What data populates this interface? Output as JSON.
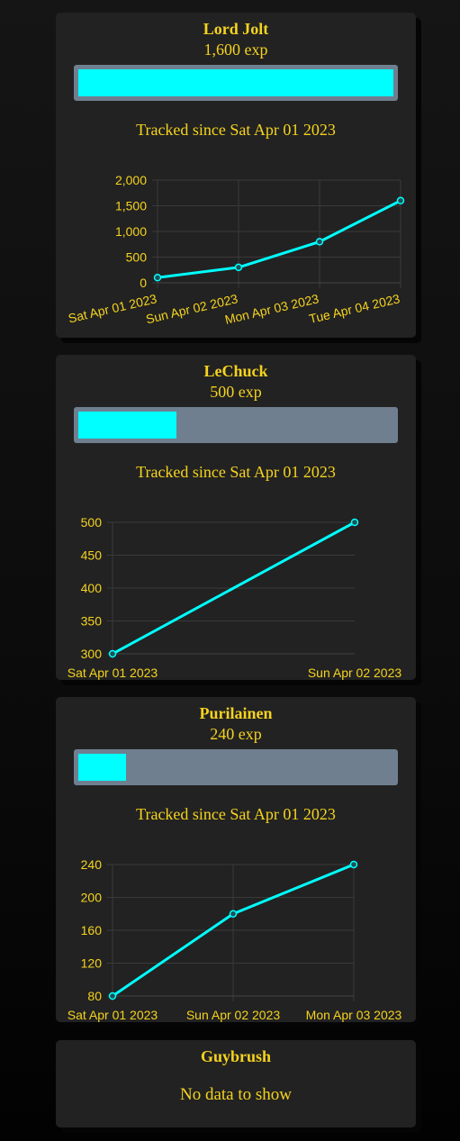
{
  "colors": {
    "accent": "#00ffff",
    "text": "#f5d31e",
    "card": "#222222",
    "bar_track": "#6f7f8f"
  },
  "players": [
    {
      "name": "Lord Jolt",
      "exp_text": "1,600 exp",
      "exp_fill_fraction": 1.0,
      "tracked_text": "Tracked since Sat Apr 01 2023"
    },
    {
      "name": "LeChuck",
      "exp_text": "500 exp",
      "exp_fill_fraction": 0.31,
      "tracked_text": "Tracked since Sat Apr 01 2023"
    },
    {
      "name": "Purilainen",
      "exp_text": "240 exp",
      "exp_fill_fraction": 0.15,
      "tracked_text": "Tracked since Sat Apr 01 2023"
    },
    {
      "name": "Guybrush",
      "no_data_text": "No data to show"
    }
  ],
  "chart_data": [
    {
      "type": "line",
      "x": [
        "Sat Apr 01 2023",
        "Sun Apr 02 2023",
        "Mon Apr 03 2023",
        "Tue Apr 04 2023"
      ],
      "values": [
        100,
        300,
        800,
        1600
      ],
      "yticks": [
        "0",
        "500",
        "1,000",
        "1,500",
        "2,000"
      ],
      "ylim": [
        0,
        2000
      ],
      "grid": true
    },
    {
      "type": "line",
      "x": [
        "Sat Apr 01 2023",
        "Sun Apr 02 2023"
      ],
      "values": [
        300,
        500
      ],
      "yticks": [
        "300",
        "350",
        "400",
        "450",
        "500"
      ],
      "ylim": [
        300,
        500
      ],
      "grid": true
    },
    {
      "type": "line",
      "x": [
        "Sat Apr 01 2023",
        "Sun Apr 02 2023",
        "Mon Apr 03 2023"
      ],
      "values": [
        80,
        180,
        240
      ],
      "yticks": [
        "80",
        "120",
        "160",
        "200",
        "240"
      ],
      "ylim": [
        80,
        240
      ],
      "grid": true
    }
  ]
}
